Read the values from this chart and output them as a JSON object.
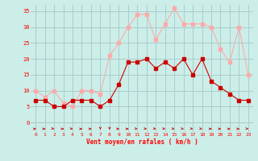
{
  "x": [
    0,
    1,
    2,
    3,
    4,
    5,
    6,
    7,
    8,
    9,
    10,
    11,
    12,
    13,
    14,
    15,
    16,
    17,
    18,
    19,
    20,
    21,
    22,
    23
  ],
  "vent_moyen": [
    7,
    7,
    5,
    5,
    7,
    7,
    7,
    5,
    7,
    12,
    19,
    19,
    20,
    17,
    19,
    17,
    20,
    15,
    20,
    13,
    11,
    9,
    7,
    7
  ],
  "en_rafales": [
    10,
    8,
    10,
    6,
    5,
    10,
    10,
    9,
    21,
    25,
    30,
    34,
    34,
    26,
    31,
    36,
    31,
    31,
    31,
    30,
    23,
    19,
    30,
    15
  ],
  "color_moyen": "#cc0000",
  "color_rafales": "#ffaaaa",
  "bg_color": "#cceee8",
  "grid_color": "#aacccc",
  "xlabel": "Vent moyen/en rafales ( km/h )",
  "ylabel_ticks": [
    0,
    5,
    10,
    15,
    20,
    25,
    30,
    35
  ],
  "ylim": [
    -3,
    37
  ],
  "xlim": [
    -0.5,
    23.5
  ],
  "arrow_angles_deg": [
    0,
    0,
    -30,
    0,
    -20,
    0,
    0,
    -90,
    -90,
    0,
    0,
    -20,
    -20,
    -20,
    -20,
    -20,
    -20,
    -20,
    -20,
    0,
    0,
    0,
    0,
    -20
  ]
}
